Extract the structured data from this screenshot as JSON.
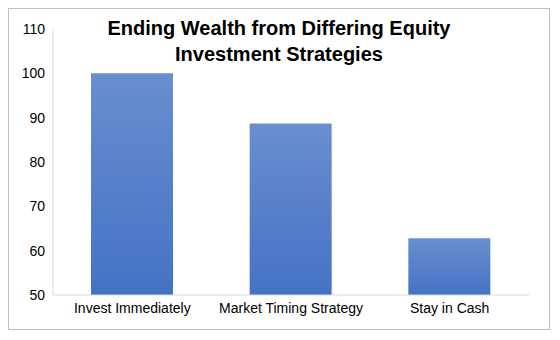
{
  "chart_data": {
    "type": "bar",
    "title": "Ending Wealth from Differing Equity Investment Strategies",
    "categories": [
      "Invest Immediately",
      "Market Timing Strategy",
      "Stay in Cash"
    ],
    "values": [
      100,
      88.7,
      62.8
    ],
    "color": "#4472c4",
    "ylim": [
      50,
      110
    ],
    "yticks": [
      50,
      60,
      70,
      80,
      90,
      100,
      110
    ],
    "grid": false
  }
}
